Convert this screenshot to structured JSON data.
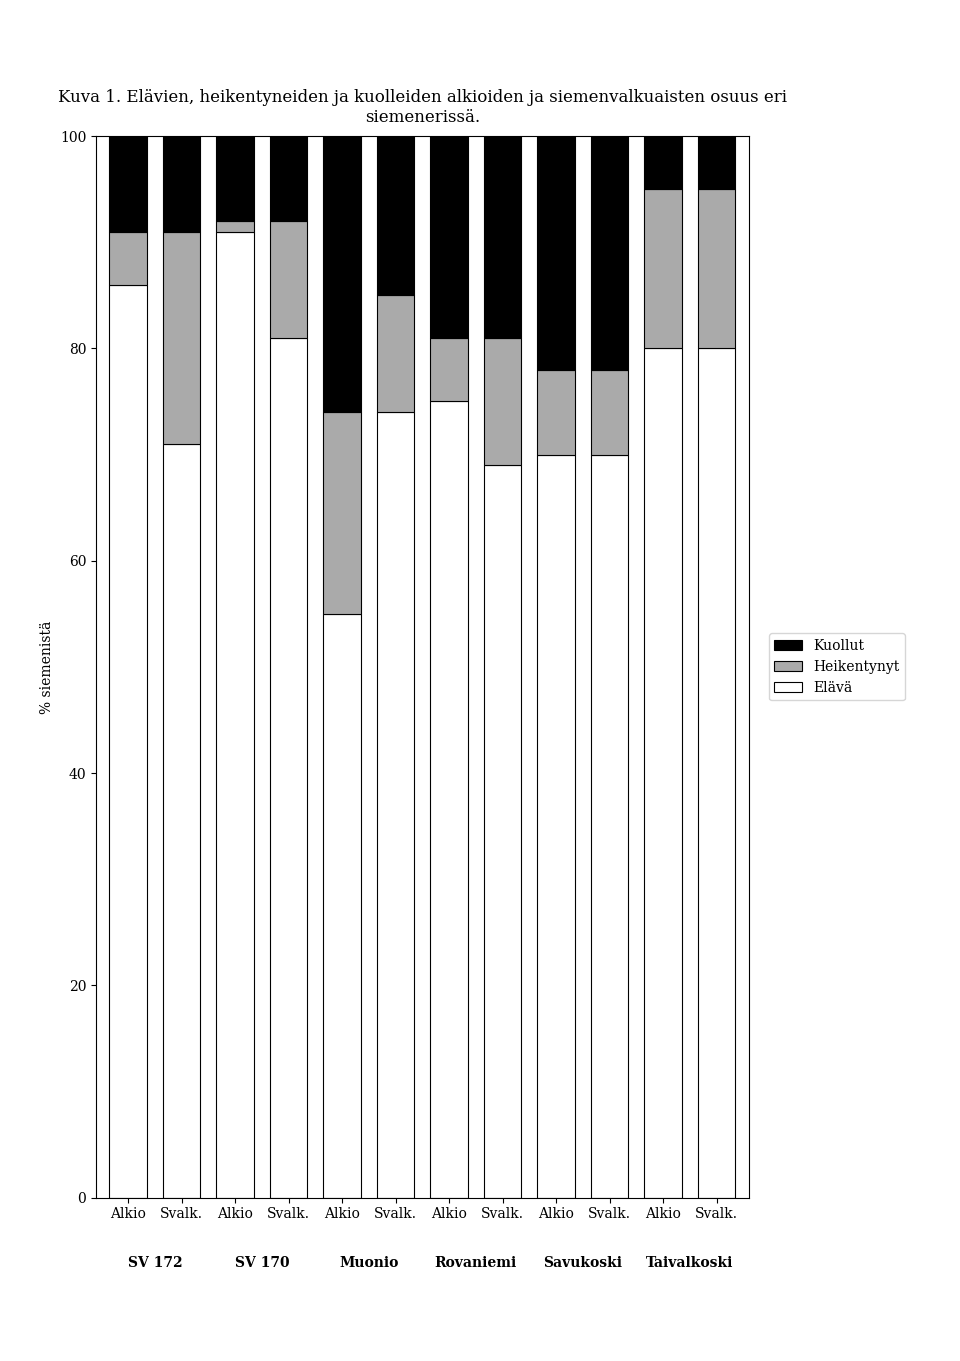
{
  "chart_data": {
    "type": "bar",
    "stacked": true,
    "title": "Kuva 1. Elävien, heikentyneiden ja kuolleiden alkioiden ja siemenvalkuaisten osuus eri\nsiemenerissä.",
    "ylabel": "% siemenistä",
    "categories": [
      "Alkio",
      "Svalk.",
      "Alkio",
      "Svalk.",
      "Alkio",
      "Svalk.",
      "Alkio",
      "Svalk.",
      "Alkio",
      "Svalk.",
      "Alkio",
      "Svalk."
    ],
    "groups": [
      "SV 172",
      "SV 170",
      "Muonio",
      "Rovaniemi",
      "Savukoski",
      "Taivalkoski"
    ],
    "series": [
      {
        "name": "Elävä",
        "color": "#ffffff",
        "values": [
          86,
          71,
          91,
          81,
          55,
          74,
          75,
          69,
          70,
          70,
          80,
          80
        ]
      },
      {
        "name": "Heikentynyt",
        "color": "#aaaaaa",
        "values": [
          5,
          20,
          1,
          11,
          19,
          11,
          6,
          12,
          8,
          8,
          15,
          15
        ]
      },
      {
        "name": "Kuollut",
        "color": "#000000",
        "values": [
          9,
          9,
          8,
          8,
          26,
          15,
          19,
          19,
          22,
          22,
          5,
          5
        ]
      }
    ],
    "ylim": [
      0,
      100
    ],
    "yticks": [
      0,
      20,
      40,
      60,
      80,
      100
    ],
    "grid": false,
    "legend": "center left"
  }
}
